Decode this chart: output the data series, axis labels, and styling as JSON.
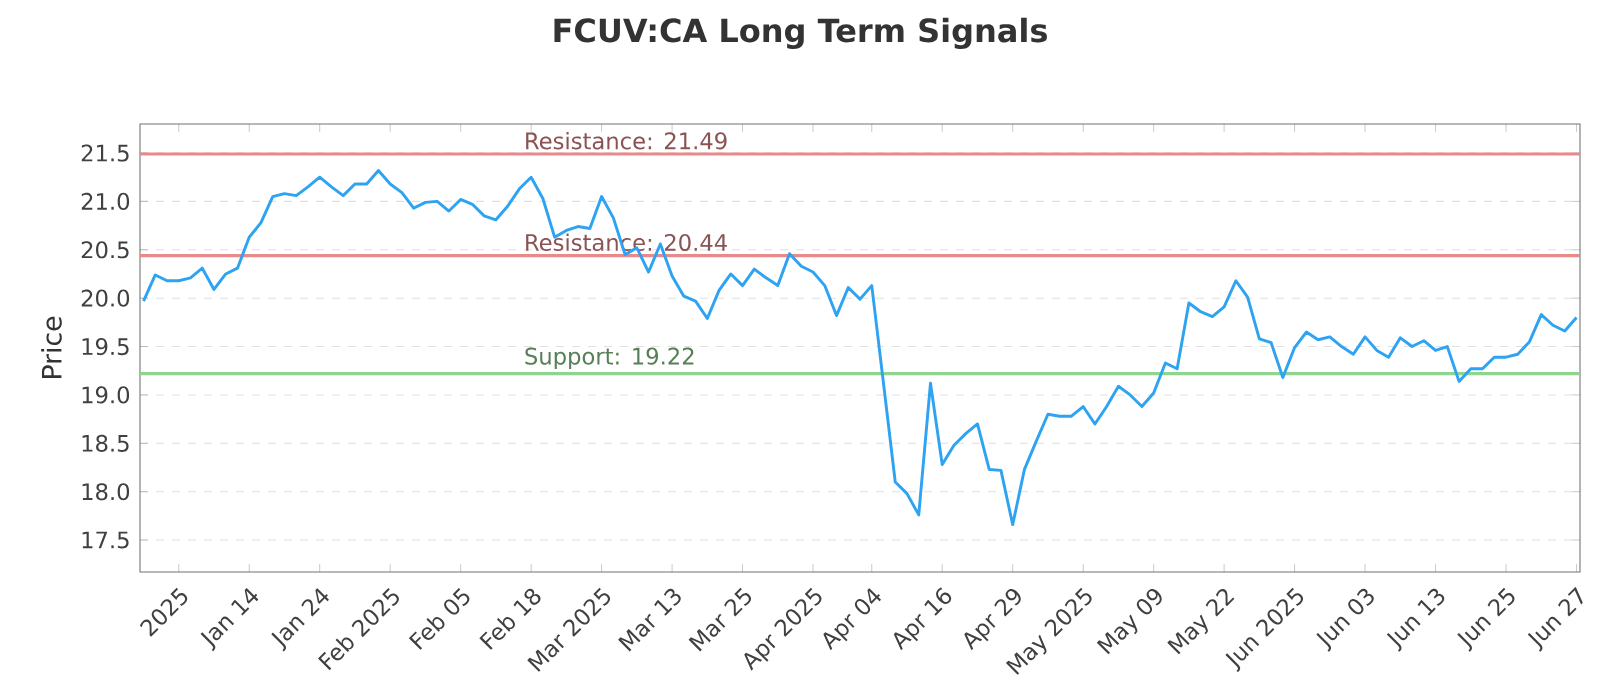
{
  "chart_data": {
    "type": "line",
    "title": "FCUV:CA Long Term Signals",
    "ylabel": "Price",
    "categories": [
      null,
      null,
      null,
      "2025",
      null,
      null,
      null,
      null,
      null,
      "Jan 14",
      null,
      null,
      null,
      null,
      null,
      "Jan 24",
      null,
      null,
      null,
      null,
      null,
      "Feb 2025",
      null,
      null,
      null,
      null,
      null,
      "Feb 05",
      null,
      null,
      null,
      null,
      null,
      "Feb 18",
      null,
      null,
      null,
      null,
      null,
      "Mar 2025",
      null,
      null,
      null,
      null,
      null,
      "Mar 13",
      null,
      null,
      null,
      null,
      null,
      "Mar 25",
      null,
      null,
      null,
      null,
      null,
      "Apr 2025",
      null,
      null,
      null,
      null,
      "Apr 04",
      null,
      null,
      null,
      null,
      null,
      "Apr 16",
      null,
      null,
      null,
      null,
      null,
      "Apr 29",
      null,
      null,
      null,
      null,
      null,
      "May 2025",
      null,
      null,
      null,
      null,
      null,
      "May 09",
      null,
      null,
      null,
      null,
      null,
      "May 22",
      null,
      null,
      null,
      null,
      null,
      "Jun 2025",
      null,
      null,
      null,
      null,
      null,
      "Jun 03",
      null,
      null,
      null,
      null,
      null,
      "Jun 13",
      null,
      null,
      null,
      null,
      null,
      "Jun 25",
      null,
      null,
      null,
      null,
      null,
      "Jun 27"
    ],
    "series": [
      {
        "color": "#2ea3f2",
        "values": [
          19.97,
          20.24,
          20.18,
          20.18,
          20.21,
          20.31,
          20.09,
          20.25,
          20.31,
          20.63,
          20.78,
          21.05,
          21.08,
          21.06,
          21.15,
          21.25,
          21.15,
          21.06,
          21.18,
          21.18,
          21.32,
          21.18,
          21.09,
          20.93,
          20.99,
          21.0,
          20.9,
          21.02,
          20.97,
          20.85,
          20.81,
          20.95,
          21.13,
          21.25,
          21.03,
          20.63,
          20.7,
          20.74,
          20.72,
          21.05,
          20.83,
          20.45,
          20.52,
          20.27,
          20.56,
          20.23,
          20.02,
          19.97,
          19.79,
          20.08,
          20.25,
          20.13,
          20.3,
          20.21,
          20.13,
          20.46,
          20.33,
          20.27,
          20.13,
          19.82,
          20.11,
          19.99,
          20.13,
          19.12,
          18.1,
          17.98,
          17.76,
          19.12,
          18.28,
          18.48,
          18.6,
          18.7,
          18.23,
          18.22,
          17.66,
          18.23,
          18.52,
          18.8,
          18.78,
          18.78,
          18.88,
          18.7,
          18.88,
          19.09,
          19.0,
          18.88,
          19.02,
          19.33,
          19.27,
          19.95,
          19.86,
          19.81,
          19.91,
          20.18,
          20.01,
          19.58,
          19.54,
          19.18,
          19.49,
          19.65,
          19.57,
          19.6,
          19.5,
          19.42,
          19.6,
          19.46,
          19.39,
          19.59,
          19.5,
          19.56,
          19.46,
          19.5,
          19.14,
          19.27,
          19.27,
          19.39,
          19.39,
          19.42,
          19.55,
          19.83,
          19.72,
          19.66,
          19.8
        ]
      }
    ],
    "ylim": [
      17.17,
      21.8
    ],
    "yticks": [
      17.5,
      {
        "value": 18,
        "label": "18.0"
      },
      18.5,
      {
        "value": 19,
        "label": "19.0"
      },
      19.5,
      {
        "value": 20,
        "label": "20.0"
      },
      20.5,
      {
        "value": 21,
        "label": "21.0"
      },
      21.5
    ],
    "ref_lines": [
      {
        "axis": "y",
        "value": 21.49,
        "label": "Resistance: 21.49",
        "color": "#e88a8a"
      },
      {
        "axis": "y",
        "value": 20.44,
        "label": "Resistance: 20.44",
        "color": "#e88a8a"
      },
      {
        "axis": "y",
        "value": 19.22,
        "label": "Support: 19.22",
        "color": "#8fd48f"
      }
    ],
    "grid": "y",
    "marker": "none"
  }
}
